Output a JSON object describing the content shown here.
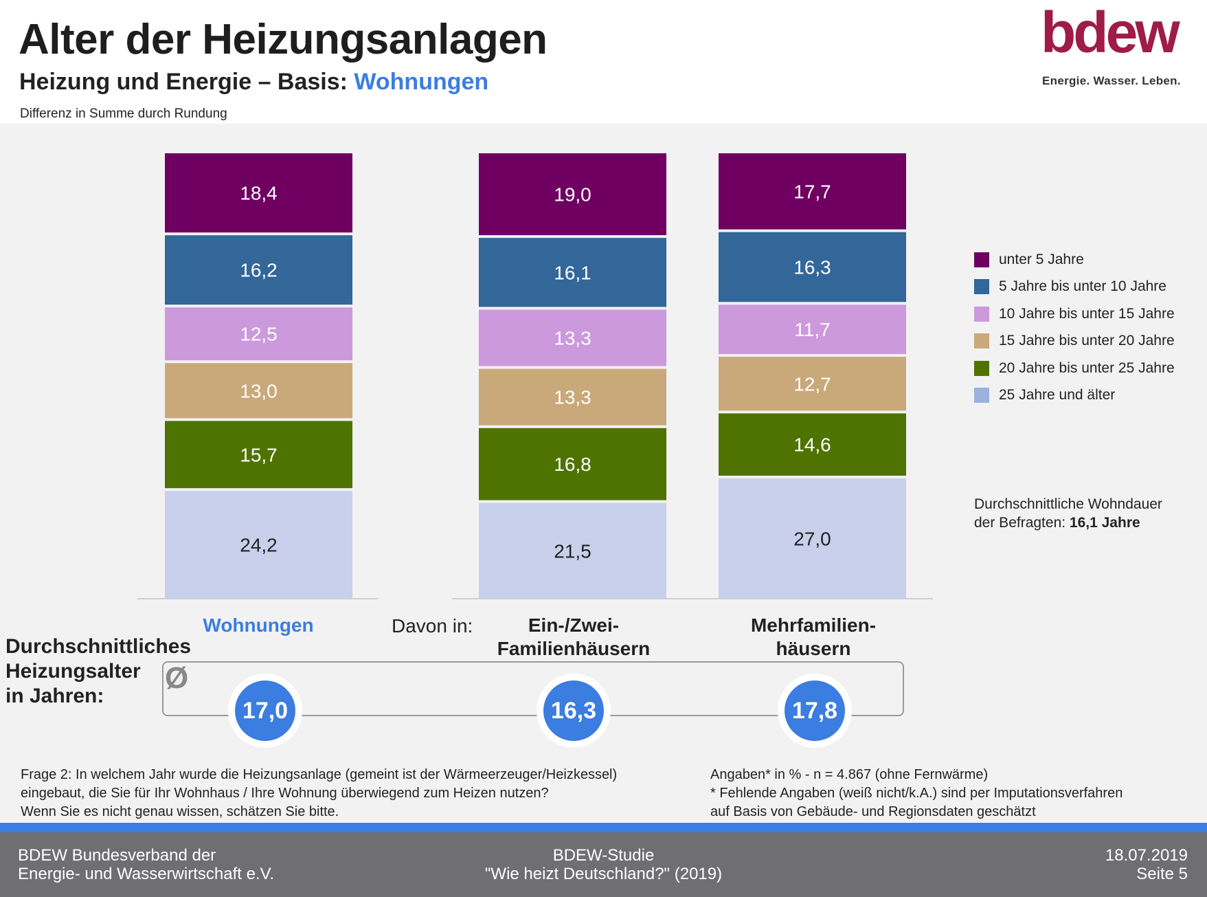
{
  "header": {
    "title": "Alter der Heizungsanlagen",
    "subtitle_prefix": "Heizung und Energie – Basis: ",
    "subtitle_highlight": "Wohnungen",
    "note": "Differenz in Summe durch Rundung"
  },
  "logo": {
    "wordmark": "bdew",
    "tagline": "Energie. Wasser. Leben.",
    "color": "#9e1c47"
  },
  "chart_data": {
    "type": "bar",
    "stacked": true,
    "unit": "%",
    "categories": [
      "Wohnungen",
      "Ein-/Zwei-Familienhäusern",
      "Mehrfamilien-häusern"
    ],
    "category_lines": [
      [
        "Wohnungen"
      ],
      [
        "Ein-/Zwei-",
        "Familienhäusern"
      ],
      [
        "Mehrfamilien-",
        "häusern"
      ]
    ],
    "series": [
      {
        "name": "unter 5 Jahre",
        "color": "#6f0061",
        "text_color": "#ffffff",
        "values": [
          18.4,
          19.0,
          17.7
        ],
        "labels": [
          "18,4",
          "19,0",
          "17,7"
        ]
      },
      {
        "name": "5 Jahre bis unter 10 Jahre",
        "color": "#336699",
        "text_color": "#ffffff",
        "values": [
          16.2,
          16.1,
          16.3
        ],
        "labels": [
          "16,2",
          "16,1",
          "16,3"
        ]
      },
      {
        "name": "10 Jahre bis unter 15 Jahre",
        "color": "#cc99dd",
        "text_color": "#ffffff",
        "values": [
          12.5,
          13.3,
          11.7
        ],
        "labels": [
          "12,5",
          "13,3",
          "11,7"
        ]
      },
      {
        "name": "15 Jahre bis unter 20 Jahre",
        "color": "#c9a97a",
        "text_color": "#ffffff",
        "values": [
          13.0,
          13.3,
          12.7
        ],
        "labels": [
          "13,0",
          "13,3",
          "12,7"
        ]
      },
      {
        "name": "20 Jahre bis unter 25 Jahre",
        "color": "#4e7300",
        "text_color": "#ffffff",
        "values": [
          15.7,
          16.8,
          14.6
        ],
        "labels": [
          "15,7",
          "16,8",
          "14,6"
        ]
      },
      {
        "name": "25 Jahre und älter",
        "color": "#c8d0ec",
        "legend_color": "#99b3dd",
        "text_color": "#222222",
        "values": [
          24.2,
          21.5,
          27.0
        ],
        "labels": [
          "24,2",
          "21,5",
          "27,0"
        ]
      }
    ],
    "legend_position": "right",
    "grid": false
  },
  "annotations": {
    "davon": "Davon in:",
    "avg_dwell_line1": "Durchschnittliche Wohndauer",
    "avg_dwell_prefix": "der Befragten: ",
    "avg_dwell_value": "16,1 Jahre"
  },
  "average": {
    "title_lines": [
      "Durchschnittliches",
      "Heizungsalter",
      "in Jahren:"
    ],
    "symbol": "Ø",
    "values": [
      "17,0",
      "16,3",
      "17,8"
    ]
  },
  "notes": {
    "question_lines": [
      "Frage 2: In welchem Jahr wurde die Heizungsanlage (gemeint ist der Wärmeerzeuger/Heizkessel)",
      "eingebaut, die Sie für Ihr Wohnhaus / Ihre Wohnung überwiegend zum Heizen nutzen?",
      "Wenn Sie es nicht genau wissen, schätzen Sie bitte."
    ],
    "basis_lines": [
      "Angaben* in % - n = 4.867 (ohne Fernwärme)",
      "* Fehlende Angaben (weiß nicht/k.A.) sind per Imputationsverfahren",
      "auf Basis von Gebäude- und Regionsdaten geschätzt"
    ]
  },
  "footer": {
    "left_lines": [
      "BDEW Bundesverband der",
      "Energie- und Wasserwirtschaft e.V."
    ],
    "mid_lines": [
      "BDEW-Studie",
      "\"Wie heizt Deutschland?\" (2019)"
    ],
    "right_lines": [
      "18.07.2019",
      "Seite 5"
    ]
  }
}
